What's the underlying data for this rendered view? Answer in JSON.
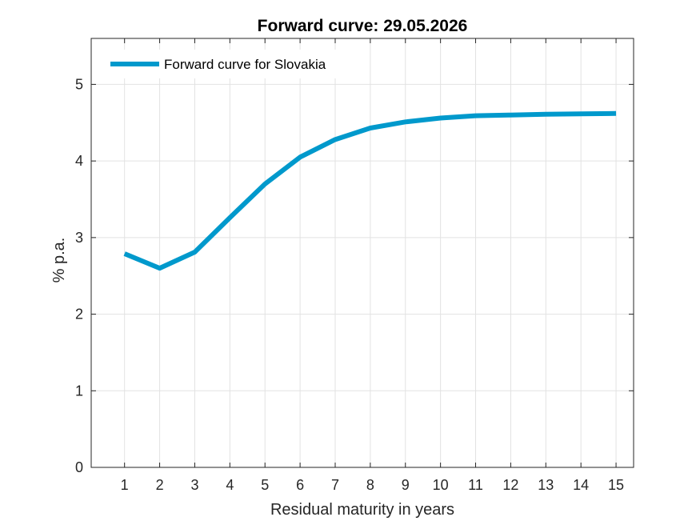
{
  "chart_data": {
    "type": "line",
    "title": "Forward curve: 29.05.2026",
    "xlabel": "Residual maturity in years",
    "ylabel": "% p.a.",
    "x": [
      1,
      2,
      3,
      4,
      5,
      6,
      7,
      8,
      9,
      10,
      11,
      12,
      13,
      14,
      15
    ],
    "xlim": [
      0.05,
      15.5
    ],
    "ylim": [
      0,
      5.6
    ],
    "yticks": [
      0,
      1,
      2,
      3,
      4,
      5
    ],
    "grid": true,
    "legend_position": "top-left",
    "series": [
      {
        "name": "Forward curve for Slovakia",
        "color": "#0099cc",
        "values": [
          2.79,
          2.6,
          2.81,
          3.26,
          3.7,
          4.05,
          4.28,
          4.43,
          4.51,
          4.56,
          4.59,
          4.6,
          4.61,
          4.615,
          4.62
        ]
      }
    ]
  }
}
